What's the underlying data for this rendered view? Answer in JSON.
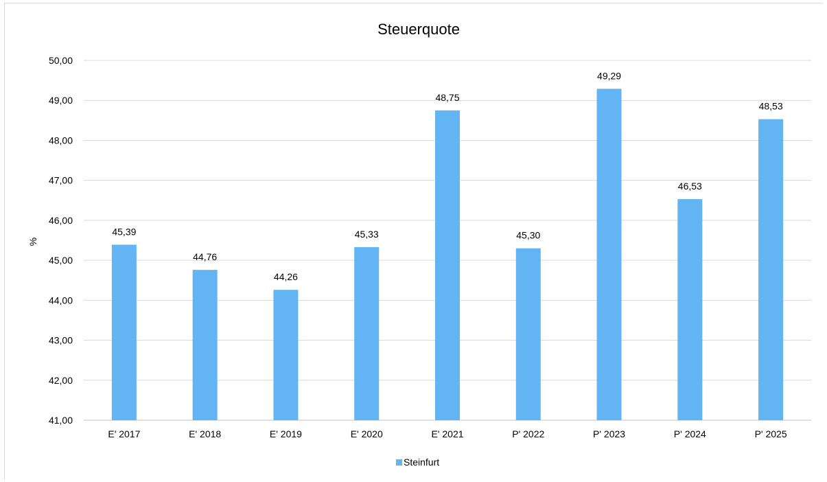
{
  "chart_data": {
    "type": "bar",
    "title": "Steuerquote",
    "xlabel": "",
    "ylabel": "%",
    "categories": [
      "E' 2017",
      "E' 2018",
      "E' 2019",
      "E' 2020",
      "E' 2021",
      "P' 2022",
      "P' 2023",
      "P' 2024",
      "P' 2025"
    ],
    "series": [
      {
        "name": "Steinfurt",
        "values": [
          45.39,
          44.76,
          44.26,
          45.33,
          48.75,
          45.3,
          49.29,
          46.53,
          48.53
        ],
        "labels": [
          "45,39",
          "44,76",
          "44,26",
          "45,33",
          "48,75",
          "45,30",
          "49,29",
          "46,53",
          "48,53"
        ]
      }
    ],
    "ylim": [
      41,
      50
    ],
    "yticks": [
      41,
      42,
      43,
      44,
      45,
      46,
      47,
      48,
      49,
      50
    ],
    "ytick_labels": [
      "41,00",
      "42,00",
      "43,00",
      "44,00",
      "45,00",
      "46,00",
      "47,00",
      "48,00",
      "49,00",
      "50,00"
    ],
    "grid": true,
    "legend_position": "bottom",
    "colors": {
      "bar": "#63b4f2",
      "grid": "#d9d9d9",
      "axis": "#bfbfbf"
    }
  }
}
